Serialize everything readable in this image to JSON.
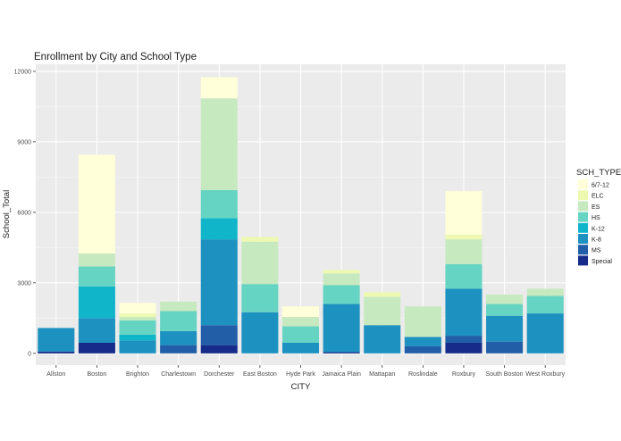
{
  "chart_data": {
    "type": "bar",
    "stacked": true,
    "title": "Enrollment by City and School Type",
    "xlabel": "CITY",
    "ylabel": "School_Total",
    "ylim": [
      -500,
      12300
    ],
    "yticks": [
      0,
      3000,
      6000,
      9000,
      12000
    ],
    "grid": true,
    "legend_position": "right",
    "legend_title": "SCH_TYPE",
    "categories": [
      "Allston",
      "Boston",
      "Brighton",
      "Charlestown",
      "Dorchester",
      "East Boston",
      "Hyde Park",
      "Jamaica Plain",
      "Mattapan",
      "Roslindale",
      "Roxbury",
      "South Boston",
      "West Roxbury"
    ],
    "series": [
      {
        "name": "6/7-12",
        "color": "#ffffd9",
        "values": [
          0,
          4200,
          450,
          0,
          900,
          0,
          450,
          0,
          0,
          0,
          1850,
          0,
          0
        ]
      },
      {
        "name": "ELC",
        "color": "#edf8b1",
        "values": [
          0,
          0,
          150,
          0,
          0,
          200,
          0,
          150,
          200,
          0,
          200,
          0,
          0
        ]
      },
      {
        "name": "ES",
        "color": "#c7e9c0",
        "values": [
          0,
          550,
          150,
          400,
          3900,
          1800,
          400,
          500,
          1200,
          1300,
          1050,
          400,
          300
        ]
      },
      {
        "name": "HS",
        "color": "#66d4c2",
        "values": [
          0,
          850,
          600,
          850,
          1200,
          1200,
          700,
          800,
          0,
          0,
          1050,
          500,
          750
        ]
      },
      {
        "name": "K-12",
        "color": "#11b5ca",
        "values": [
          0,
          1350,
          250,
          0,
          900,
          0,
          0,
          0,
          0,
          0,
          0,
          0,
          0
        ]
      },
      {
        "name": "K-8",
        "color": "#1d91c0",
        "values": [
          1000,
          1050,
          550,
          600,
          3650,
          1750,
          450,
          2050,
          1200,
          400,
          2000,
          1100,
          1700
        ]
      },
      {
        "name": "MS",
        "color": "#225ea8",
        "values": [
          0,
          0,
          0,
          350,
          850,
          0,
          0,
          0,
          0,
          300,
          300,
          500,
          0
        ]
      },
      {
        "name": "Special",
        "color": "#172b8a",
        "values": [
          80,
          450,
          0,
          0,
          350,
          0,
          0,
          50,
          0,
          0,
          450,
          0,
          0
        ]
      }
    ]
  }
}
